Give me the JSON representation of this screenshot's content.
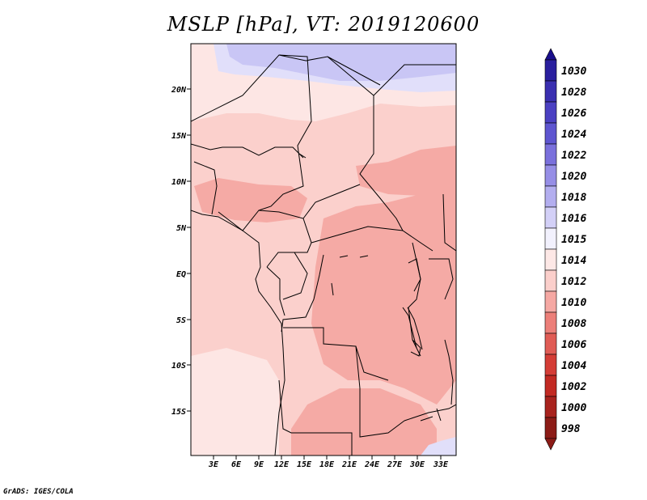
{
  "title": "MSLP [hPa], VT: 2019120600",
  "credit": "GrADS: IGES/COLA",
  "map": {
    "lat_labels": [
      "20N",
      "15N",
      "10N",
      "5N",
      "EQ",
      "5S",
      "10S",
      "15S"
    ],
    "lon_labels": [
      "3E",
      "6E",
      "9E",
      "12E",
      "15E",
      "18E",
      "21E",
      "24E",
      "27E",
      "30E",
      "33E"
    ]
  },
  "colorbar": {
    "levels": [
      "1030",
      "1028",
      "1026",
      "1024",
      "1022",
      "1020",
      "1018",
      "1016",
      "1015",
      "1014",
      "1012",
      "1010",
      "1008",
      "1006",
      "1004",
      "1002",
      "1000",
      "998"
    ],
    "colors": [
      "#1a0f8c",
      "#2a1f9e",
      "#3a2fb0",
      "#4b40c2",
      "#5e55d0",
      "#7a70dc",
      "#968ee6",
      "#b3aeef",
      "#d3d0f7",
      "#f2f1fd",
      "#fde8e6",
      "#fbcfcb",
      "#f5a8a3",
      "#ec7f79",
      "#e05c55",
      "#d43d36",
      "#c22a23",
      "#a8231e",
      "#8c1c17"
    ]
  },
  "field_colors": {
    "blue_high": "#c9c6f5",
    "blue_low": "#e1dffa",
    "pale": "#fde6e4",
    "light": "#fbd0cc",
    "medium": "#f5aaa5"
  }
}
